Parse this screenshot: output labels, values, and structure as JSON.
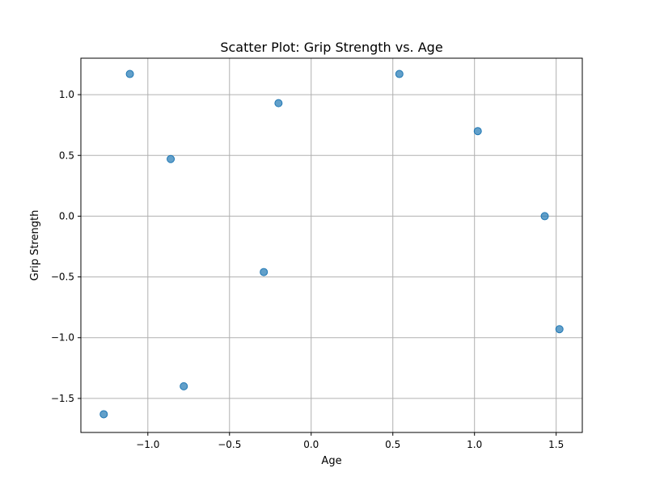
{
  "chart_data": {
    "type": "scatter",
    "title": "Scatter Plot: Grip Strength vs. Age",
    "xlabel": "Age",
    "ylabel": "Grip Strength",
    "xlim": [
      -1.41,
      1.66
    ],
    "ylim": [
      -1.78,
      1.3
    ],
    "xticks": [
      -1.0,
      -0.5,
      0.0,
      0.5,
      1.0,
      1.5
    ],
    "xtick_labels": [
      "−1.0",
      "−0.5",
      "0.0",
      "0.5",
      "1.0",
      "1.5"
    ],
    "yticks": [
      -1.5,
      -1.0,
      -0.5,
      0.0,
      0.5,
      1.0
    ],
    "ytick_labels": [
      "−1.5",
      "−1.0",
      "−0.5",
      "0.0",
      "0.5",
      "1.0"
    ],
    "grid": true,
    "point_color": "#1f77b4",
    "points": [
      {
        "x": -1.27,
        "y": -1.63
      },
      {
        "x": -1.11,
        "y": 1.17
      },
      {
        "x": -0.86,
        "y": 0.47
      },
      {
        "x": -0.78,
        "y": -1.4
      },
      {
        "x": -0.29,
        "y": -0.46
      },
      {
        "x": -0.2,
        "y": 0.93
      },
      {
        "x": 0.54,
        "y": 1.17
      },
      {
        "x": 1.02,
        "y": 0.7
      },
      {
        "x": 1.43,
        "y": 0.0
      },
      {
        "x": 1.52,
        "y": -0.93
      }
    ]
  }
}
